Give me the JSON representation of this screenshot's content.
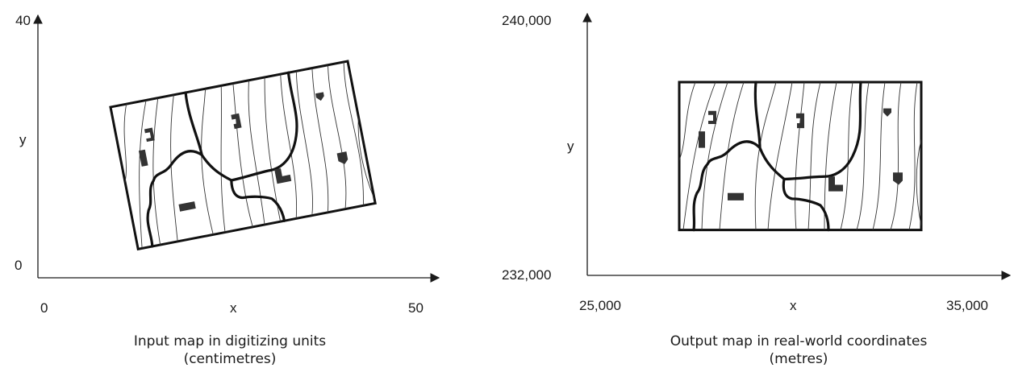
{
  "left_panel": {
    "y_top_label": "40",
    "y_bottom_label": "0",
    "x_left_label": "0",
    "x_right_label": "50",
    "x_axis_label": "x",
    "y_axis_label": "y",
    "caption_line1": "Input map in digitizing units",
    "caption_line2": "(centimetres)"
  },
  "right_panel": {
    "y_top_label": "240,000",
    "y_bottom_label": "232,000",
    "x_left_label": "25,000",
    "x_right_label": "35,000",
    "x_axis_label": "x",
    "y_axis_label": "y",
    "caption_line1": "Output map in real-world coordinates",
    "caption_line2": "(metres)"
  }
}
